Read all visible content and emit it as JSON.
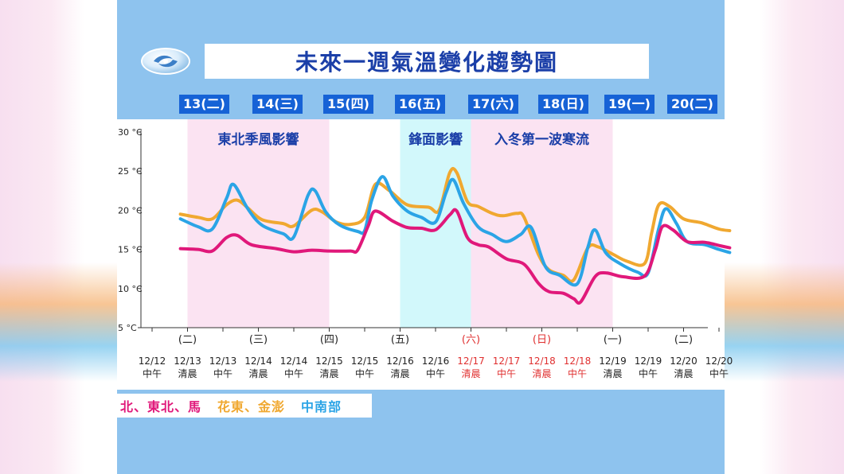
{
  "title": "未來一週氣溫變化趨勢圖",
  "days": [
    "13(二)",
    "14(三)",
    "15(四)",
    "16(五)",
    "17(六)",
    "18(日)",
    "19(一)",
    "20(二)"
  ],
  "annotations": [
    "東北季風影響",
    "鋒面影響",
    "入冬第一波寒流"
  ],
  "legend": [
    {
      "label": "北、東北、馬",
      "color": "#e0187a"
    },
    {
      "label": "花東、金澎",
      "color": "#f0a830"
    },
    {
      "label": "中南部",
      "color": "#2ba4e6"
    }
  ],
  "chart_data": {
    "type": "line",
    "y_ticks": [
      "30 °C",
      "25 °C",
      "20 °C",
      "15 °C",
      "10 °C",
      "5 °C"
    ],
    "ylim": [
      5,
      30
    ],
    "x_ticks": [
      {
        "top": "",
        "date": "12/12",
        "time": "中午",
        "red": false
      },
      {
        "top": "(二)",
        "date": "12/13",
        "time": "清晨",
        "red": false
      },
      {
        "top": "",
        "date": "12/13",
        "time": "中午",
        "red": false
      },
      {
        "top": "(三)",
        "date": "12/14",
        "time": "清晨",
        "red": false
      },
      {
        "top": "",
        "date": "12/14",
        "time": "中午",
        "red": false
      },
      {
        "top": "(四)",
        "date": "12/15",
        "time": "清晨",
        "red": false
      },
      {
        "top": "",
        "date": "12/15",
        "time": "中午",
        "red": false
      },
      {
        "top": "(五)",
        "date": "12/16",
        "time": "清晨",
        "red": false
      },
      {
        "top": "",
        "date": "12/16",
        "time": "中午",
        "red": false
      },
      {
        "top": "(六)",
        "date": "12/17",
        "time": "清晨",
        "red": true
      },
      {
        "top": "",
        "date": "12/17",
        "time": "中午",
        "red": true
      },
      {
        "top": "(日)",
        "date": "12/18",
        "time": "清晨",
        "red": true
      },
      {
        "top": "",
        "date": "12/18",
        "time": "中午",
        "red": true
      },
      {
        "top": "(一)",
        "date": "12/19",
        "time": "清晨",
        "red": false
      },
      {
        "top": "",
        "date": "12/19",
        "time": "中午",
        "red": false
      },
      {
        "top": "(二)",
        "date": "12/20",
        "time": "清晨",
        "red": false
      },
      {
        "top": "",
        "date": "12/20",
        "time": "中午",
        "red": false
      }
    ],
    "series": [
      {
        "name": "北、東北、馬",
        "color": "#e0187a",
        "points": [
          [
            0.8,
            15.1
          ],
          [
            1.3,
            15.0
          ],
          [
            1.7,
            14.8
          ],
          [
            2.1,
            16.5
          ],
          [
            2.4,
            16.8
          ],
          [
            2.8,
            15.6
          ],
          [
            3.5,
            15.1
          ],
          [
            4.0,
            14.7
          ],
          [
            4.5,
            14.9
          ],
          [
            5.0,
            14.8
          ],
          [
            5.6,
            14.8
          ],
          [
            5.8,
            14.9
          ],
          [
            6.1,
            18.0
          ],
          [
            6.3,
            19.9
          ],
          [
            6.8,
            18.6
          ],
          [
            7.2,
            17.8
          ],
          [
            7.6,
            17.7
          ],
          [
            8.0,
            17.5
          ],
          [
            8.4,
            19.4
          ],
          [
            8.6,
            19.9
          ],
          [
            8.9,
            16.5
          ],
          [
            9.2,
            15.6
          ],
          [
            9.5,
            15.3
          ],
          [
            10.0,
            13.8
          ],
          [
            10.5,
            13.1
          ],
          [
            10.9,
            10.7
          ],
          [
            11.2,
            9.6
          ],
          [
            11.6,
            9.4
          ],
          [
            11.9,
            8.7
          ],
          [
            12.1,
            8.3
          ],
          [
            12.5,
            11.5
          ],
          [
            12.8,
            12.0
          ],
          [
            13.3,
            11.5
          ],
          [
            13.9,
            11.6
          ],
          [
            14.2,
            14.9
          ],
          [
            14.4,
            17.9
          ],
          [
            14.7,
            17.5
          ],
          [
            15.1,
            16.0
          ],
          [
            15.6,
            15.9
          ],
          [
            16.0,
            15.5
          ],
          [
            16.3,
            15.2
          ]
        ]
      },
      {
        "name": "花東、金澎",
        "color": "#f0a830",
        "points": [
          [
            0.8,
            19.5
          ],
          [
            1.3,
            19.1
          ],
          [
            1.7,
            18.9
          ],
          [
            2.1,
            20.7
          ],
          [
            2.4,
            21.3
          ],
          [
            2.7,
            20.3
          ],
          [
            3.1,
            18.8
          ],
          [
            3.7,
            18.3
          ],
          [
            4.0,
            18.0
          ],
          [
            4.5,
            20.0
          ],
          [
            4.8,
            19.8
          ],
          [
            5.2,
            18.5
          ],
          [
            5.6,
            18.2
          ],
          [
            6.0,
            19.1
          ],
          [
            6.3,
            23.3
          ],
          [
            6.7,
            22.5
          ],
          [
            7.2,
            20.7
          ],
          [
            7.8,
            20.4
          ],
          [
            8.1,
            20.0
          ],
          [
            8.4,
            24.8
          ],
          [
            8.6,
            24.8
          ],
          [
            8.9,
            21.1
          ],
          [
            9.2,
            20.5
          ],
          [
            9.6,
            19.6
          ],
          [
            9.9,
            19.3
          ],
          [
            10.3,
            19.6
          ],
          [
            10.5,
            19.1
          ],
          [
            10.9,
            14.4
          ],
          [
            11.2,
            12.4
          ],
          [
            11.6,
            11.7
          ],
          [
            11.9,
            11.1
          ],
          [
            12.3,
            15.2
          ],
          [
            12.6,
            15.3
          ],
          [
            13.0,
            14.4
          ],
          [
            13.4,
            13.5
          ],
          [
            13.9,
            13.2
          ],
          [
            14.1,
            17.1
          ],
          [
            14.3,
            20.7
          ],
          [
            14.6,
            20.5
          ],
          [
            15.0,
            18.9
          ],
          [
            15.5,
            18.4
          ],
          [
            16.0,
            17.6
          ],
          [
            16.3,
            17.4
          ]
        ]
      },
      {
        "name": "中南部",
        "color": "#2ba4e6",
        "points": [
          [
            0.8,
            18.9
          ],
          [
            1.3,
            17.9
          ],
          [
            1.7,
            17.6
          ],
          [
            2.1,
            21.5
          ],
          [
            2.3,
            23.3
          ],
          [
            2.7,
            20.2
          ],
          [
            3.1,
            18.1
          ],
          [
            3.7,
            17.0
          ],
          [
            4.0,
            16.6
          ],
          [
            4.4,
            21.9
          ],
          [
            4.6,
            22.5
          ],
          [
            4.9,
            19.8
          ],
          [
            5.3,
            18.1
          ],
          [
            5.8,
            17.3
          ],
          [
            6.0,
            17.4
          ],
          [
            6.2,
            21.3
          ],
          [
            6.5,
            24.3
          ],
          [
            6.8,
            21.8
          ],
          [
            7.2,
            19.9
          ],
          [
            7.6,
            19.1
          ],
          [
            8.0,
            18.5
          ],
          [
            8.3,
            22.3
          ],
          [
            8.5,
            23.9
          ],
          [
            8.8,
            20.8
          ],
          [
            9.2,
            17.9
          ],
          [
            9.6,
            16.9
          ],
          [
            10.0,
            16.0
          ],
          [
            10.4,
            16.9
          ],
          [
            10.7,
            17.8
          ],
          [
            11.1,
            12.8
          ],
          [
            11.5,
            11.7
          ],
          [
            12.0,
            10.6
          ],
          [
            12.3,
            15.3
          ],
          [
            12.5,
            17.5
          ],
          [
            12.8,
            14.6
          ],
          [
            13.2,
            13.2
          ],
          [
            13.7,
            12.1
          ],
          [
            14.0,
            12.0
          ],
          [
            14.3,
            17.7
          ],
          [
            14.5,
            20.2
          ],
          [
            14.8,
            18.3
          ],
          [
            15.1,
            16.0
          ],
          [
            15.6,
            15.6
          ],
          [
            16.0,
            15.0
          ],
          [
            16.3,
            14.6
          ]
        ]
      }
    ]
  }
}
